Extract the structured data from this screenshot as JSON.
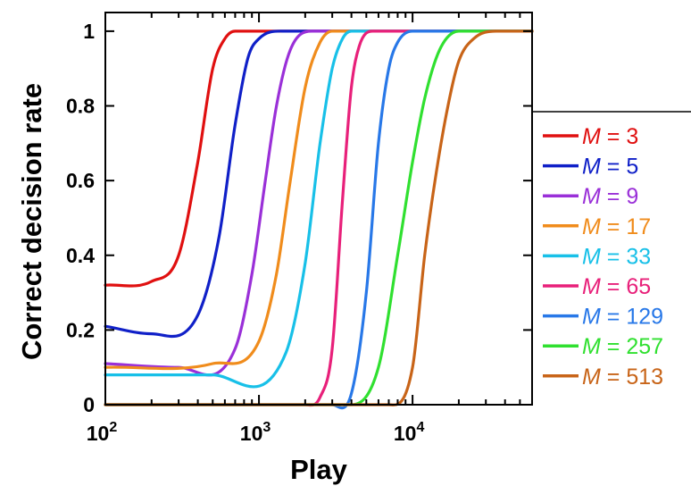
{
  "chart_data": {
    "type": "line",
    "title": "",
    "xlabel": "Play",
    "ylabel": "Correct decision rate",
    "x_scale": "log",
    "xlim": [
      100,
      60000
    ],
    "ylim": [
      0,
      1.05
    ],
    "y_ticks": [
      {
        "value": 0,
        "label": "0"
      },
      {
        "value": 0.2,
        "label": "0.2"
      },
      {
        "value": 0.4,
        "label": "0.4"
      },
      {
        "value": 0.6,
        "label": "0.6"
      },
      {
        "value": 0.8,
        "label": "0.8"
      },
      {
        "value": 1,
        "label": "1"
      }
    ],
    "x_ticks": [
      {
        "value": 100,
        "base": "10",
        "exp": "2"
      },
      {
        "value": 1000,
        "base": "10",
        "exp": "3"
      },
      {
        "value": 10000,
        "base": "10",
        "exp": "4"
      }
    ],
    "legend": "right",
    "grid": false,
    "series": [
      {
        "name": "M = 3",
        "label_var": "M",
        "label_rest": " = 3",
        "color": "#e01010",
        "x": [
          100,
          200,
          300,
          400,
          500,
          600,
          700,
          1000,
          10000,
          60000
        ],
        "y": [
          0.32,
          0.33,
          0.4,
          0.65,
          0.9,
          0.98,
          1.0,
          1.0,
          1.0,
          1.0
        ]
      },
      {
        "name": "M = 5",
        "label_var": "M",
        "label_rest": " = 5",
        "color": "#1020c8",
        "x": [
          100,
          200,
          400,
          550,
          700,
          850,
          1000,
          1500,
          10000,
          60000
        ],
        "y": [
          0.21,
          0.19,
          0.24,
          0.45,
          0.75,
          0.93,
          0.98,
          1.0,
          1.0,
          1.0
        ]
      },
      {
        "name": "M = 9",
        "label_var": "M",
        "label_rest": " = 9",
        "color": "#9a30d8",
        "x": [
          100,
          300,
          700,
          900,
          1100,
          1300,
          1600,
          2200,
          10000,
          60000
        ],
        "y": [
          0.11,
          0.1,
          0.15,
          0.35,
          0.6,
          0.8,
          0.95,
          1.0,
          1.0,
          1.0
        ]
      },
      {
        "name": "M = 17",
        "label_var": "M",
        "label_rest": " = 17",
        "color": "#f08c1c",
        "x": [
          100,
          500,
          1000,
          1300,
          1600,
          2000,
          2500,
          3000,
          10000,
          60000
        ],
        "y": [
          0.1,
          0.11,
          0.17,
          0.35,
          0.6,
          0.85,
          0.97,
          1.0,
          1.0,
          1.0
        ]
      },
      {
        "name": "M = 33",
        "label_var": "M",
        "label_rest": " = 33",
        "color": "#18c0e8",
        "x": [
          100,
          500,
          1500,
          2000,
          2500,
          3000,
          3500,
          4000,
          10000,
          60000
        ],
        "y": [
          0.08,
          0.08,
          0.14,
          0.38,
          0.7,
          0.9,
          0.98,
          1.0,
          1.0,
          1.0
        ]
      },
      {
        "name": "M = 65",
        "label_var": "M",
        "label_rest": " = 65",
        "color": "#e8207a",
        "x": [
          100,
          2000,
          2500,
          3000,
          3500,
          4000,
          4500,
          5500,
          10000,
          60000
        ],
        "y": [
          0.0,
          0.0,
          0.02,
          0.15,
          0.55,
          0.85,
          0.96,
          1.0,
          1.0,
          1.0
        ]
      },
      {
        "name": "M = 129",
        "label_var": "M",
        "label_rest": " = 129",
        "color": "#2878e8",
        "x": [
          100,
          3000,
          4000,
          5000,
          6000,
          7000,
          8000,
          10000,
          20000,
          60000
        ],
        "y": [
          0.0,
          0.0,
          0.03,
          0.3,
          0.7,
          0.9,
          0.97,
          1.0,
          1.0,
          1.0
        ]
      },
      {
        "name": "M = 257",
        "label_var": "M",
        "label_rest": " = 257",
        "color": "#30e030",
        "x": [
          100,
          4000,
          6000,
          8000,
          10000,
          12000,
          15000,
          20000,
          30000,
          60000
        ],
        "y": [
          0.0,
          0.0,
          0.1,
          0.4,
          0.65,
          0.82,
          0.95,
          1.0,
          1.0,
          1.0
        ]
      },
      {
        "name": "M = 513",
        "label_var": "M",
        "label_rest": " = 513",
        "color": "#c86418",
        "x": [
          100,
          7000,
          10000,
          12000,
          14000,
          17000,
          20000,
          25000,
          35000,
          60000
        ],
        "y": [
          0.0,
          0.0,
          0.1,
          0.4,
          0.6,
          0.8,
          0.92,
          0.98,
          1.0,
          1.0
        ]
      }
    ]
  }
}
